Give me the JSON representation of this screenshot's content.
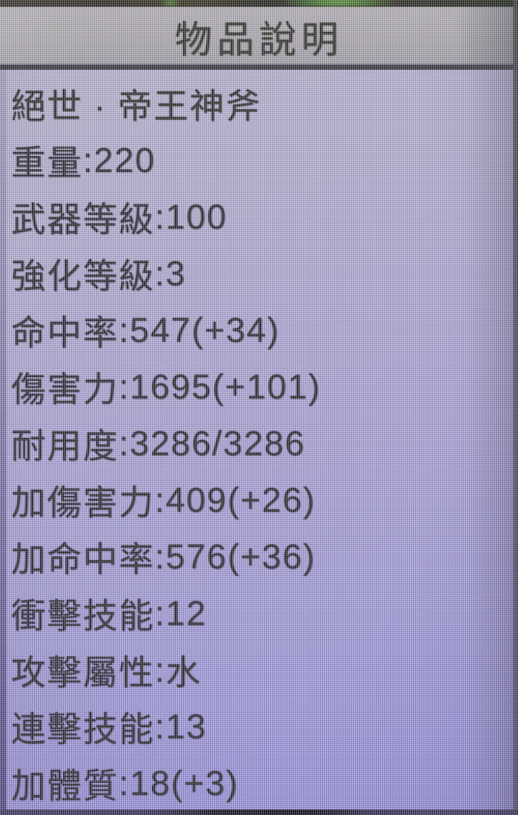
{
  "window": {
    "title": "物品說明"
  },
  "item": {
    "name": "絕世 · 帝王神斧",
    "separator": ":",
    "stats": [
      {
        "label": "重量",
        "value": "220"
      },
      {
        "label": "武器等級",
        "value": "100"
      },
      {
        "label": "強化等級",
        "value": "3"
      },
      {
        "label": "命中率",
        "value": "547(+34)"
      },
      {
        "label": "傷害力",
        "value": "1695(+101)"
      },
      {
        "label": "耐用度",
        "value": "3286/3286"
      },
      {
        "label": "加傷害力",
        "value": "409(+26)"
      },
      {
        "label": "加命中率",
        "value": "576(+36)"
      },
      {
        "label": "衝擊技能",
        "value": "12"
      },
      {
        "label": "攻擊屬性",
        "value": "水"
      },
      {
        "label": "連擊技能",
        "value": "13"
      },
      {
        "label": "加體質",
        "value": "18(+3)"
      }
    ]
  },
  "colors": {
    "body_background": "#a8a2d2",
    "titlebar_background": "#aba7ad",
    "divider": "#33333a",
    "text": "#28272e",
    "glow_green": "#6ec04f"
  }
}
